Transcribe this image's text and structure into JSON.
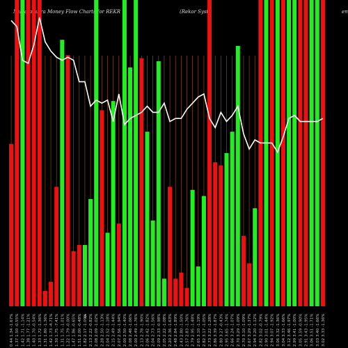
{
  "title": {
    "left": "MunafaSutra Money Flow Charts for REKR",
    "middle": "(Rekor Syst",
    "right": "em"
  },
  "chart_data": {
    "type": "bar",
    "title": "MunafaSutra Money Flow Charts for REKR (Rekor Systems)",
    "colors": {
      "up": "#22ee22",
      "down": "#ee1111",
      "line": "#ffffff",
      "grid": "#8a4a0a",
      "background": "#000000"
    },
    "ylim": [
      0,
      100
    ],
    "categories": [
      "0.44 1.34 -1.67%",
      "1.37 1.50 -0.55%",
      "1.42 1.71 -1.14%",
      "1.38 1.77 -1.21%",
      "1.40 1.70 -0.54%",
      "1.33 1.72 -1.36%",
      "1.31 1.80 -1.36%",
      "1.42 1.73 -4.71%",
      "1.30 1.75 -7.41%",
      "1.31 1.75 -1.01%",
      "1.22 1.79 -0.00%",
      "1.47 1.86 -0.65%",
      "1.51 2.00 -0.48%",
      "1.82 2.17 -1.09%",
      "2.13 2.22 -0.82%",
      "2.08 2.09 -1.02%",
      "2.28 2.50 -1.13%",
      "2.04 2.52 -1.18%",
      "2.15 2.49 -1.44%",
      "2.07 2.56 -1.94%",
      "2.00 2.50 -1.40%",
      "2.08 2.48 -1.06%",
      "2.00 2.49 -1.76%",
      "2.13 2.78 -1.90%",
      "2.06 2.42 -1.82%",
      "2.04 2.73 -1.56%",
      "2.09 2.33 -0.98%",
      "2.05 2.22 -1.08%",
      "2.20 2.36 -1.63%",
      "2.48 2.84 -1.89%",
      "2.43 2.80 -1.50%",
      "2.57 2.83 -1.76%",
      "2.79 2.95 -1.48%",
      "2.65 3.10 -1.19%",
      "2.82 3.17 -1.05%",
      "2.73 3.22 -1.28%",
      "2.86 3.39 -1.87%",
      "2.80 3.27 -0.43%",
      "2.95 3.65 -1.74%",
      "2.66 3.24 -1.07%",
      "2.70 3.29 -1.09%",
      "2.70 3.10 -1.09%",
      "2.67 3.29 -1.37%",
      "2.94 3.20 -1.12%",
      "2.82 3.02 -0.79%",
      "2.90 3.01 -1.44%",
      "2.94 3.07 -1.92%",
      "3.06 3.32 -1.36%",
      "3.04 3.33 -1.66%",
      "3.12 3.46 -1.97%",
      "2.99 3.41 -1.00%",
      "3.05 3.59 -0.90%",
      "2.91 3.43 -1.95%",
      "3.06 3.51 -1.71%",
      "3.03 3.40 -1.66%",
      "3.02 3.33 -1.36%"
    ],
    "series": [
      {
        "colors": [
          "down",
          "down",
          "up",
          "down",
          "down",
          "down",
          "down",
          "down",
          "down",
          "up",
          "down",
          "down",
          "down",
          "up",
          "up",
          "up",
          "down",
          "up",
          "up",
          "down",
          "up",
          "up",
          "up",
          "down",
          "up",
          "up",
          "up",
          "up",
          "down",
          "down",
          "down",
          "down",
          "up",
          "up",
          "up",
          "down",
          "down",
          "down",
          "up",
          "up",
          "up",
          "down",
          "down",
          "up",
          "down",
          "up",
          "down",
          "up",
          "down",
          "up",
          "up",
          "down",
          "down",
          "up",
          "up",
          "down"
        ],
        "values": [
          53,
          100,
          100,
          100,
          100,
          100,
          5,
          8,
          39,
          87,
          82,
          18,
          20,
          20,
          35,
          100,
          64,
          24,
          67,
          27,
          100,
          78,
          100,
          81,
          57,
          28,
          80,
          9,
          39,
          9,
          11,
          6,
          38,
          13,
          36,
          100,
          47,
          46,
          50,
          57,
          85,
          23,
          14,
          32,
          100,
          100,
          100,
          100,
          100,
          100,
          100,
          100,
          100,
          100,
          100,
          100
        ]
      },
      {
        "type": "line",
        "values": [
          99,
          97,
          86,
          85,
          91,
          100,
          92,
          89,
          87,
          86,
          87,
          86,
          79,
          79,
          71,
          73,
          72,
          73,
          66,
          75,
          65,
          67,
          68,
          69,
          71,
          69,
          69,
          72,
          66,
          67,
          67,
          70,
          72,
          74,
          75,
          67,
          64,
          69,
          66,
          68,
          71,
          62,
          57,
          60,
          59,
          59,
          59,
          56,
          61,
          67,
          68,
          66,
          66,
          66,
          66,
          67
        ]
      }
    ],
    "marker_label": "$"
  }
}
